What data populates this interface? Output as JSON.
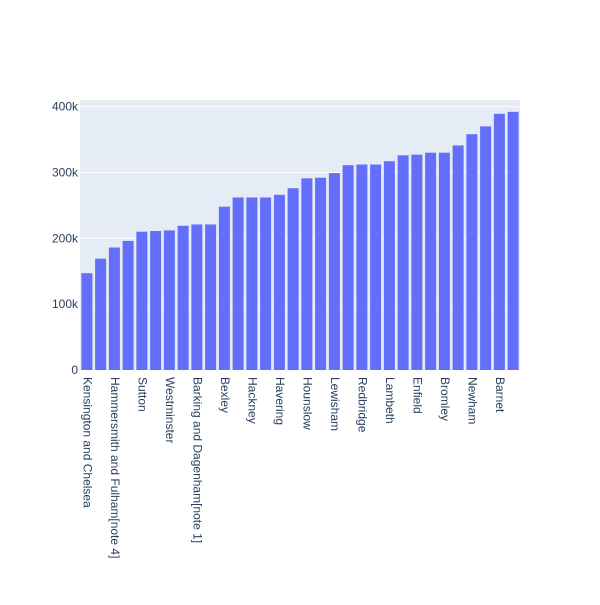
{
  "chart_data": {
    "type": "bar",
    "title": "",
    "xlabel": "",
    "ylabel": "",
    "ylim": [
      0,
      410000
    ],
    "y_ticks": [
      {
        "value": 0,
        "label": "0"
      },
      {
        "value": 100000,
        "label": "100k"
      },
      {
        "value": 200000,
        "label": "200k"
      },
      {
        "value": 300000,
        "label": "300k"
      },
      {
        "value": 400000,
        "label": "400k"
      }
    ],
    "categories": [
      "Kensington and Chelsea",
      "",
      "Hammersmith and Fulham[note 4]",
      "",
      "Sutton",
      "",
      "Westminster",
      "",
      "Barking and Dagenham[note 1]",
      "",
      "Bexley",
      "",
      "Hackney",
      "",
      "Havering",
      "",
      "Hounslow",
      "",
      "Lewisham",
      "",
      "Redbridge",
      "",
      "Lambeth",
      "",
      "Enfield",
      "",
      "Bromley",
      "",
      "Newham",
      "",
      "Barnet",
      ""
    ],
    "values": [
      147000,
      169000,
      186000,
      196000,
      210000,
      211000,
      212000,
      219000,
      221000,
      221000,
      248000,
      262000,
      262000,
      262000,
      266000,
      276000,
      291000,
      292000,
      299000,
      311000,
      312000,
      312000,
      317000,
      326000,
      327000,
      330000,
      330000,
      341000,
      358000,
      370000,
      389000,
      392000
    ],
    "colors": {
      "bar": "#636efa",
      "plot_background": "#e5ecf6",
      "gridline": "#ffffff",
      "text": "#2a3f5f"
    },
    "grid": true
  }
}
